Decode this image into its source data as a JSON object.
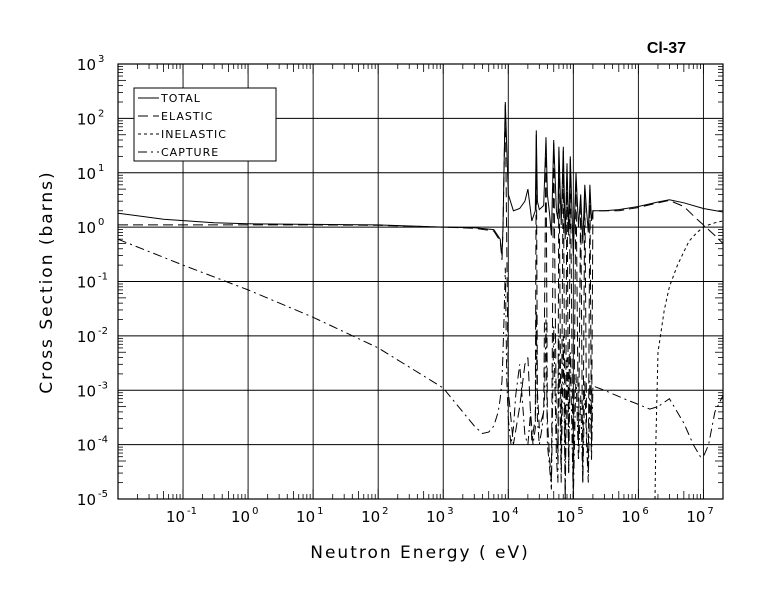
{
  "chart_data": {
    "type": "line",
    "title": "Cl-37",
    "xlabel": "Neutron Energy ( eV)",
    "ylabel": "Cross Section (barns)",
    "xscale": "log",
    "yscale": "log",
    "xlim": [
      0.01,
      20000000
    ],
    "ylim": [
      1e-05,
      1000
    ],
    "grid": true,
    "legend_position": "top-left",
    "x_tick_labels": [
      "10^-1",
      "10^0",
      "10^1",
      "10^2",
      "10^3",
      "10^4",
      "10^5",
      "10^6",
      "10^7"
    ],
    "y_tick_labels": [
      "10^-5",
      "10^-4",
      "10^-3",
      "10^-2",
      "10^-1",
      "10^0",
      "10^1",
      "10^2",
      "10^3"
    ],
    "series": [
      {
        "name": "TOTAL",
        "dash": "solid",
        "x": [
          0.01,
          0.05,
          0.3,
          1,
          10,
          100,
          1000,
          3000,
          6000,
          7500,
          8000,
          8300,
          8600,
          9000,
          10000,
          12000,
          15000,
          18000,
          20000,
          23000,
          26000,
          27000,
          28000,
          30000,
          35000,
          38000,
          40000,
          43000,
          46000,
          50000,
          55000,
          58000,
          60000,
          65000,
          70000,
          75000,
          80000,
          85000,
          90000,
          100000,
          110000,
          120000,
          130000,
          140000,
          150000,
          160000,
          170000,
          180000,
          190000,
          200000,
          300000,
          500000,
          1000000,
          2000000,
          3000000,
          5000000,
          10000000,
          20000000
        ],
        "y": [
          1.8,
          1.4,
          1.2,
          1.15,
          1.12,
          1.1,
          1.0,
          0.97,
          0.9,
          0.6,
          0.3,
          1.0,
          12,
          200,
          4,
          2,
          2.2,
          3,
          5,
          1.3,
          2,
          60,
          3,
          2.1,
          2.5,
          45,
          4,
          1.8,
          0.7,
          40,
          2,
          1.4,
          30,
          1.1,
          30,
          0.6,
          15,
          0.7,
          20,
          0.3,
          10,
          1.0,
          4,
          0.5,
          6,
          2,
          0.8,
          6,
          1.3,
          2,
          2.0,
          2.1,
          2.4,
          2.9,
          3.2,
          2.8,
          2.2,
          1.9
        ]
      },
      {
        "name": "ELASTIC",
        "dash": "long-dash",
        "x": [
          0.01,
          1,
          10,
          100,
          1000,
          3000,
          6000,
          7500,
          8000,
          8300,
          8600,
          9000,
          10000,
          12000,
          15000,
          18000,
          20000,
          23000,
          26000,
          27000,
          28000,
          30000,
          35000,
          38000,
          40000,
          43000,
          46000,
          50000,
          55000,
          58000,
          60000,
          65000,
          70000,
          75000,
          80000,
          85000,
          90000,
          100000,
          110000,
          120000,
          130000,
          140000,
          150000,
          160000,
          170000,
          180000,
          190000,
          200000,
          300000,
          500000,
          1000000,
          2000000,
          3000000,
          5000000,
          8000000,
          10000000,
          15000000,
          20000000
        ],
        "y": [
          1.1,
          1.1,
          1.1,
          1.08,
          1.0,
          0.95,
          0.85,
          0.55,
          0.25,
          0.9,
          10,
          180,
          0.001,
          0.0001,
          0.0005,
          0.003,
          0.004,
          0.00012,
          0.0003,
          50,
          0.001,
          0.0002,
          0.0004,
          40,
          0.0003,
          6e-05,
          2e-05,
          35,
          0.0002,
          5e-05,
          25,
          4e-05,
          25,
          1e-05,
          12,
          3e-05,
          18,
          1e-05,
          8,
          0.0001,
          3,
          2e-05,
          5,
          0.0002,
          3e-05,
          5,
          0.0001,
          2,
          2,
          2,
          2.3,
          2.8,
          3.1,
          2.4,
          1.4,
          1.1,
          0.7,
          0.5
        ]
      },
      {
        "name": "INELASTIC",
        "dash": "short-dash",
        "x": [
          1800000,
          1850000,
          2000000,
          2500000,
          3000000,
          4000000,
          5000000,
          6000000,
          8000000,
          10000000,
          12000000,
          15000000,
          20000000
        ],
        "y": [
          1e-05,
          0.0001,
          0.005,
          0.03,
          0.08,
          0.2,
          0.35,
          0.55,
          0.8,
          1.0,
          1.1,
          1.2,
          1.3
        ]
      },
      {
        "name": "CAPTURE",
        "dash": "dash-dot",
        "x": [
          0.01,
          0.1,
          1,
          10,
          100,
          1000,
          2000,
          3000,
          4000,
          5000,
          6000,
          7000,
          7500,
          8000,
          8300,
          8600,
          9000,
          9500,
          10000,
          11000,
          12000,
          13000,
          15000,
          18000,
          20000,
          22000,
          24000,
          26000,
          27000,
          28000,
          30000,
          33000,
          36000,
          38000,
          40000,
          43000,
          46000,
          50000,
          55000,
          58000,
          60000,
          65000,
          70000,
          75000,
          80000,
          85000,
          90000,
          100000,
          110000,
          120000,
          130000,
          140000,
          150000,
          160000,
          170000,
          180000,
          190000,
          200000,
          300000,
          600000,
          1000000,
          1500000,
          2000000,
          3000000,
          5000000,
          7000000,
          9000000,
          10000000,
          12000000,
          15000000,
          20000000
        ],
        "y": [
          0.6,
          0.2,
          0.07,
          0.022,
          0.006,
          0.0011,
          0.0004,
          0.00022,
          0.00016,
          0.00017,
          0.00022,
          0.0004,
          0.0007,
          0.0015,
          0.005,
          0.02,
          0.18,
          0.0015,
          0.0003,
          0.0001,
          0.0002,
          0.0008,
          0.003,
          0.00015,
          0.0001,
          0.0004,
          0.0001,
          0.0002,
          0.03,
          0.0003,
          0.0001,
          0.0002,
          0.0006,
          0.02,
          0.0001,
          4e-05,
          1.5e-05,
          0.015,
          6e-05,
          2e-05,
          0.01,
          2e-05,
          0.01,
          1e-05,
          0.004,
          3e-05,
          0.005,
          1e-05,
          0.002,
          5e-05,
          0.0008,
          2e-05,
          0.0015,
          0.0001,
          2e-05,
          0.0015,
          5e-05,
          0.0012,
          0.001,
          0.0007,
          0.00055,
          0.00045,
          0.0005,
          0.0007,
          0.00025,
          0.0001,
          6e-05,
          6e-05,
          0.0001,
          0.0004,
          0.0008
        ]
      }
    ]
  }
}
